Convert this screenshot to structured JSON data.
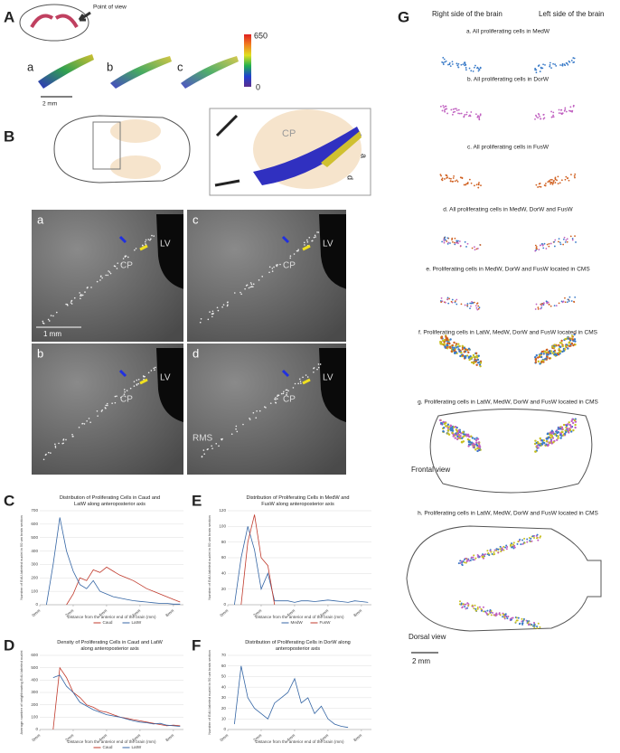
{
  "panel_labels": [
    "A",
    "B",
    "C",
    "D",
    "E",
    "F",
    "G"
  ],
  "panel_a": {
    "callout": "Point of view",
    "sub_labels": [
      "a",
      "b",
      "c"
    ],
    "scale_bar": "2 mm",
    "colorbar": {
      "max": 650,
      "min": 0
    }
  },
  "panel_b": {
    "inset_label": "CP",
    "section_labels": [
      "a",
      "d"
    ],
    "scale_bar": "1 mm",
    "micrographs": [
      {
        "label": "a",
        "lv": "LV",
        "cp": "CP"
      },
      {
        "label": "c",
        "lv": "LV",
        "cp": "CP"
      },
      {
        "label": "b",
        "lv": "LV",
        "cp": "CP"
      },
      {
        "label": "d",
        "lv": "LV",
        "cp": "CP",
        "rms": "RMS"
      }
    ]
  },
  "panel_g": {
    "headers": [
      "Right side of the brain",
      "Left side of the brain"
    ],
    "rows": [
      "a. All proliferating cells in MedW",
      "b. All proliferating cells in DorW",
      "c. All proliferating cells in FusW",
      "d. All proliferating cells in MedW, DorW and FusW",
      "e. Proliferating cells in MedW, DorW and FusW located in CMS",
      "f. Proliferating cells in LatW, MedW, DorW and FusW located in CMS",
      "g. Proliferating cells in LatW, MedW, DorW and FusW located in CMS",
      "h. Proliferating cells in LatW, MedW, DorW and FusW located in CMS"
    ],
    "frontal": "Frontal view",
    "dorsal": "Dorsal view",
    "scale_bar": "2 mm"
  },
  "chart_data": [
    {
      "type": "line",
      "title": "Distribution of Proliferating Cells in Caud and LatW along anteroposterior axis",
      "x_label": "Distance from the anterior end of the brain (mm)",
      "y_label": "Number of EdU-labeled nuclei in 50 um brain section",
      "xlim": [
        0,
        8.6
      ],
      "ylim": [
        0,
        700
      ],
      "yticks": [
        0,
        100,
        200,
        300,
        400,
        500,
        600,
        700
      ],
      "xticks": [
        {
          "value": 0,
          "label": "0mm"
        },
        {
          "value": 2,
          "label": "2mm"
        },
        {
          "value": 4,
          "label": "4mm"
        },
        {
          "value": 6,
          "label": "6mm"
        },
        {
          "value": 8,
          "label": "8mm"
        }
      ],
      "x": [
        0.4,
        0.8,
        1.2,
        1.6,
        2,
        2.4,
        2.8,
        3.2,
        3.6,
        4,
        4.4,
        4.8,
        5.2,
        5.6,
        6,
        6.4,
        6.8,
        7.2,
        7.6,
        8,
        8.4
      ],
      "series": [
        {
          "name": "Caud",
          "color": "#c0392b",
          "values": [
            null,
            null,
            null,
            0,
            80,
            200,
            180,
            260,
            240,
            280,
            250,
            220,
            200,
            180,
            150,
            120,
            100,
            80,
            60,
            40,
            20
          ]
        },
        {
          "name": "LatW",
          "color": "#3465a4",
          "values": [
            0,
            300,
            650,
            400,
            250,
            150,
            120,
            180,
            100,
            80,
            60,
            50,
            40,
            30,
            25,
            20,
            15,
            10,
            10,
            5,
            5
          ]
        }
      ]
    },
    {
      "type": "line",
      "title": "Density of Proliferating Cells in Caud and LatW along anteroposterior axis",
      "x_label": "Distance from the anterior end of the brain (mm)",
      "y_label": "Average number of neighbouring EdU-labeled nuclei",
      "xlim": [
        0,
        8.6
      ],
      "ylim": [
        0,
        600
      ],
      "yticks": [
        0,
        100,
        200,
        300,
        400,
        500,
        600
      ],
      "xticks": [
        {
          "value": 0,
          "label": "0mm"
        },
        {
          "value": 2,
          "label": "2mm"
        },
        {
          "value": 4,
          "label": "4mm"
        },
        {
          "value": 6,
          "label": "6mm"
        },
        {
          "value": 8,
          "label": "8mm"
        }
      ],
      "x": [
        0.4,
        0.8,
        1.2,
        1.6,
        2,
        2.4,
        2.8,
        3.2,
        3.6,
        4,
        4.4,
        4.8,
        5.2,
        5.6,
        6,
        6.4,
        6.8,
        7.2,
        7.6,
        8,
        8.4
      ],
      "series": [
        {
          "name": "Caud",
          "color": "#c0392b",
          "values": [
            null,
            0,
            500,
            420,
            300,
            260,
            200,
            180,
            150,
            140,
            120,
            100,
            90,
            80,
            70,
            60,
            50,
            40,
            30,
            35,
            30
          ]
        },
        {
          "name": "LatW",
          "color": "#3465a4",
          "values": [
            null,
            420,
            440,
            350,
            300,
            220,
            190,
            160,
            140,
            120,
            110,
            100,
            85,
            70,
            60,
            55,
            45,
            50,
            35,
            30,
            25
          ]
        }
      ]
    },
    {
      "type": "line",
      "title": "Distribution of Proliferating Cells in MedW and FusW along anteroposterior axis",
      "x_label": "Distance from the anterior end of the brain (mm)",
      "y_label": "Number of EdU-labeled nuclei in 50 um brain section",
      "xlim": [
        0,
        8.6
      ],
      "ylim": [
        0,
        120
      ],
      "yticks": [
        0,
        20,
        40,
        60,
        80,
        100,
        120
      ],
      "xticks": [
        {
          "value": 0,
          "label": "0mm"
        },
        {
          "value": 2,
          "label": "2mm"
        },
        {
          "value": 4,
          "label": "4mm"
        },
        {
          "value": 6,
          "label": "6mm"
        },
        {
          "value": 8,
          "label": "8mm"
        }
      ],
      "x": [
        0.4,
        0.8,
        1.2,
        1.6,
        2,
        2.4,
        2.8,
        3.2,
        3.6,
        4,
        4.4,
        4.8,
        5.2,
        5.6,
        6,
        6.4,
        6.8,
        7.2,
        7.6,
        8,
        8.4
      ],
      "series": [
        {
          "name": "MedW",
          "color": "#3465a4",
          "values": [
            0,
            60,
            100,
            70,
            20,
            40,
            5,
            5,
            5,
            3,
            5,
            5,
            4,
            5,
            6,
            5,
            4,
            3,
            5,
            4,
            3
          ]
        },
        {
          "name": "FusW",
          "color": "#c0392b",
          "values": [
            null,
            0,
            80,
            115,
            60,
            50,
            0,
            null,
            null,
            null,
            null,
            null,
            null,
            null,
            null,
            null,
            null,
            null,
            null,
            null,
            null
          ]
        }
      ]
    },
    {
      "type": "line",
      "title": "Distribution of Proliferating Cells in DorW along anteroposterior axis",
      "x_label": "Distance from the anterior end of the brain (mm)",
      "y_label": "Number of EdU-labeled nuclei in 50 um brain section",
      "xlim": [
        0,
        8.6
      ],
      "ylim": [
        0,
        70
      ],
      "yticks": [
        0,
        10,
        20,
        30,
        40,
        50,
        60,
        70
      ],
      "xticks": [
        {
          "value": 0,
          "label": "0mm"
        },
        {
          "value": 2,
          "label": "2mm"
        },
        {
          "value": 4,
          "label": "4mm"
        },
        {
          "value": 6,
          "label": "6mm"
        },
        {
          "value": 8,
          "label": "8mm"
        }
      ],
      "x": [
        0.4,
        0.8,
        1.2,
        1.6,
        2,
        2.4,
        2.8,
        3.2,
        3.6,
        4,
        4.4,
        4.8,
        5.2,
        5.6,
        6,
        6.4,
        6.8,
        7.2,
        7.6,
        8,
        8.4
      ],
      "series": [
        {
          "color": "#3465a4",
          "values": [
            5,
            60,
            30,
            20,
            15,
            10,
            25,
            30,
            35,
            48,
            25,
            30,
            15,
            22,
            10,
            5,
            3,
            2,
            null,
            null,
            null
          ]
        }
      ]
    }
  ]
}
